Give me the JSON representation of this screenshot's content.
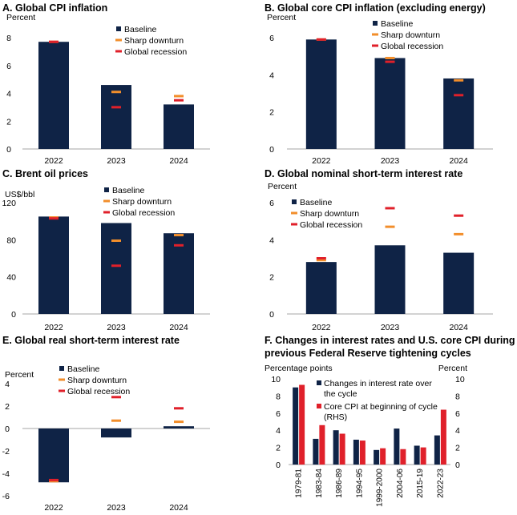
{
  "colors": {
    "baseline": "#0f2346",
    "downturn": "#f28e2b",
    "recession": "#e0202a",
    "rates": "#0f2346",
    "cpi": "#e0202a",
    "axis": "#a6a6a6"
  },
  "legend": {
    "baseline": "Baseline",
    "downturn": "Sharp downturn",
    "recession": "Global recession"
  },
  "panels": {
    "a": {
      "title": "A. Global CPI inflation",
      "unit": "Percent"
    },
    "b": {
      "title": "B. Global core CPI inflation (excluding energy)",
      "unit": "Percent"
    },
    "c": {
      "title": "C. Brent oil prices",
      "unit": "US$/bbl"
    },
    "d": {
      "title": "D. Global nominal short-term interest rate",
      "unit": "Percent"
    },
    "e": {
      "title": "E. Global real short-term interest rate",
      "unit": "Percent"
    },
    "f": {
      "title_line1": "F. Changes in interest rates and U.S. core CPI during",
      "title_line2": "previous Federal Reserve tightening cycles",
      "unit_left": "Percentage points",
      "unit_right": "Percent",
      "legend_rates_1": "Changes in interest rate over",
      "legend_rates_2": "the cycle",
      "legend_cpi_1": "Core CPI at beginning of cycle",
      "legend_cpi_2": "(RHS)"
    }
  },
  "chart_data": [
    {
      "id": "a",
      "type": "bar",
      "categories": [
        "2022",
        "2023",
        "2024"
      ],
      "ylim": [
        0,
        8
      ],
      "yticks": [
        0,
        2,
        4,
        6,
        8
      ],
      "series": [
        {
          "name": "Baseline",
          "values": [
            7.7,
            4.6,
            3.2
          ]
        },
        {
          "name": "Sharp downturn",
          "values": [
            7.7,
            4.1,
            3.8
          ]
        },
        {
          "name": "Global recession",
          "values": [
            7.7,
            3.0,
            3.5
          ]
        }
      ]
    },
    {
      "id": "b",
      "type": "bar",
      "categories": [
        "2022",
        "2023",
        "2024"
      ],
      "ylim": [
        0,
        6
      ],
      "yticks": [
        0,
        2,
        4,
        6
      ],
      "series": [
        {
          "name": "Baseline",
          "values": [
            5.9,
            4.9,
            3.8
          ]
        },
        {
          "name": "Sharp downturn",
          "values": [
            5.9,
            4.9,
            3.7
          ]
        },
        {
          "name": "Global recession",
          "values": [
            5.9,
            4.7,
            2.9
          ]
        }
      ]
    },
    {
      "id": "c",
      "type": "bar",
      "categories": [
        "2022",
        "2023",
        "2024"
      ],
      "ylim": [
        0,
        120
      ],
      "yticks": [
        0,
        40,
        80,
        120
      ],
      "series": [
        {
          "name": "Baseline",
          "values": [
            105,
            98,
            87
          ]
        },
        {
          "name": "Sharp downturn",
          "values": [
            104,
            79,
            85
          ]
        },
        {
          "name": "Global recession",
          "values": [
            103,
            52,
            74
          ]
        }
      ]
    },
    {
      "id": "d",
      "type": "bar",
      "categories": [
        "2022",
        "2023",
        "2024"
      ],
      "ylim": [
        0,
        6
      ],
      "yticks": [
        0,
        2,
        4,
        6
      ],
      "series": [
        {
          "name": "Baseline",
          "values": [
            2.8,
            3.7,
            3.3
          ]
        },
        {
          "name": "Sharp downturn",
          "values": [
            2.9,
            4.7,
            4.3
          ]
        },
        {
          "name": "Global recession",
          "values": [
            3.0,
            5.7,
            5.3
          ]
        }
      ]
    },
    {
      "id": "e",
      "type": "bar",
      "categories": [
        "2022",
        "2023",
        "2024"
      ],
      "ylim": [
        -6,
        4
      ],
      "yticks": [
        -6,
        -4,
        -2,
        0,
        2,
        4
      ],
      "series": [
        {
          "name": "Baseline",
          "values": [
            -4.8,
            -0.8,
            0.2
          ]
        },
        {
          "name": "Sharp downturn",
          "values": [
            -4.7,
            0.7,
            0.6
          ]
        },
        {
          "name": "Global recession",
          "values": [
            -4.6,
            2.8,
            1.8
          ]
        }
      ]
    },
    {
      "id": "f",
      "type": "bar",
      "categories": [
        "1979-81",
        "1983-84",
        "1986-89",
        "1994-95",
        "1999-2000",
        "2004-06",
        "2015-19",
        "2022-23"
      ],
      "ylim": [
        0,
        10
      ],
      "yticks": [
        0,
        2,
        4,
        6,
        8,
        10
      ],
      "ylim_right": [
        0,
        10
      ],
      "yticks_right": [
        0,
        2,
        4,
        6,
        8,
        10
      ],
      "series": [
        {
          "name": "Changes in interest rate over the cycle",
          "values": [
            9.0,
            3.0,
            4.0,
            2.9,
            1.7,
            4.2,
            2.2,
            3.4
          ]
        },
        {
          "name": "Core CPI at beginning of cycle (RHS)",
          "values": [
            9.3,
            4.6,
            3.6,
            2.8,
            1.9,
            1.8,
            2.0,
            6.4
          ]
        }
      ]
    }
  ]
}
